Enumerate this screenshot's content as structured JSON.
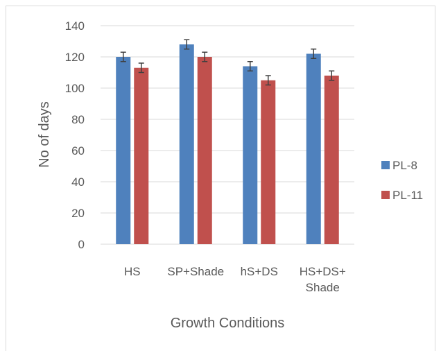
{
  "chart_data": {
    "type": "bar",
    "title": "",
    "xlabel": "Growth Conditions",
    "ylabel": "No of days",
    "categories": [
      [
        "HS"
      ],
      [
        "SP+Shade"
      ],
      [
        "hS+DS"
      ],
      [
        "HS+DS+",
        "Shade"
      ]
    ],
    "series": [
      {
        "name": "PL-8",
        "color": "#4f81bd",
        "values": [
          120,
          128,
          114,
          122
        ],
        "errors": [
          3,
          3,
          3,
          3
        ]
      },
      {
        "name": "PL-11",
        "color": "#c0504d",
        "values": [
          113,
          120,
          105,
          108
        ],
        "errors": [
          3,
          3,
          3,
          3
        ]
      }
    ],
    "ylim": [
      0,
      140
    ],
    "yticks": [
      0,
      20,
      40,
      60,
      80,
      100,
      120,
      140
    ],
    "grid": true,
    "legend": "right"
  }
}
